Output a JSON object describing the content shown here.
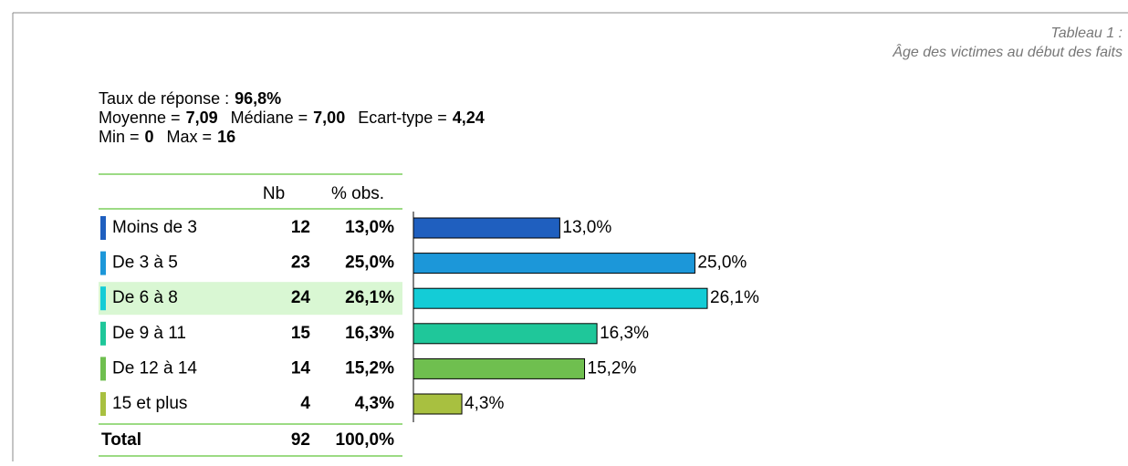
{
  "caption": [
    "Tableau 1 :",
    "Âge des victimes au début des faits"
  ],
  "stats": [
    [
      {
        "label": "Taux de réponse :",
        "value": "96,8%"
      }
    ],
    [
      {
        "label": "Moyenne =",
        "value": "7,09"
      },
      {
        "label": "Médiane =",
        "value": "7,00"
      },
      {
        "label": "Ecart-type =",
        "value": "4,24"
      }
    ],
    [
      {
        "label": "Min =",
        "value": "0"
      },
      {
        "label": "Max =",
        "value": "16"
      }
    ]
  ],
  "chart_data": {
    "type": "bar",
    "orientation": "horizontal",
    "columns": [
      "Nb",
      "% obs."
    ],
    "categories": [
      "Moins de 3",
      "De 3 à 5",
      "De 6 à 8",
      "De 9 à 11",
      "De 12 à 14",
      "15 et plus"
    ],
    "counts": [
      12,
      23,
      24,
      15,
      14,
      4
    ],
    "values": [
      13.0,
      25.0,
      26.1,
      16.3,
      15.2,
      4.3
    ],
    "value_labels": [
      "13,0%",
      "25,0%",
      "26,1%",
      "16,3%",
      "15,2%",
      "4,3%"
    ],
    "colors": [
      "#1f5fbf",
      "#1c97d9",
      "#14ccd6",
      "#1fc79a",
      "#6fbf4f",
      "#a8c040"
    ],
    "highlight": 2,
    "total": {
      "label": "Total",
      "count": 92,
      "value": 100,
      "value_label": "100,0%"
    }
  }
}
